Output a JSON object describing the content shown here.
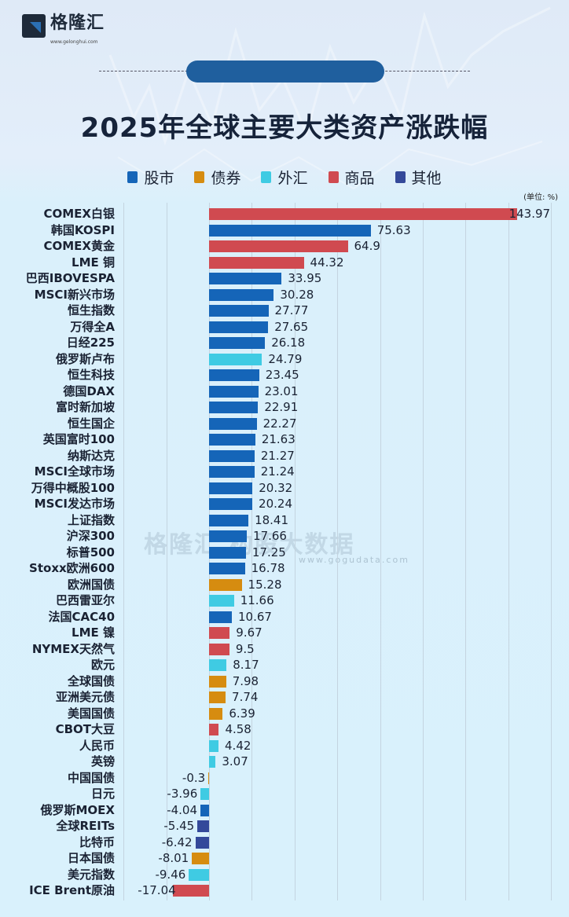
{
  "header": {
    "logo_text": "格隆汇",
    "logo_url": "www.gelonghui.com",
    "title": "2025年全球主要大类资产涨跌幅",
    "unit": "(单位: %)"
  },
  "legend": [
    {
      "label": "股市",
      "color": "#1565b8"
    },
    {
      "label": "债券",
      "color": "#d68c10"
    },
    {
      "label": "外汇",
      "color": "#3fcbe3"
    },
    {
      "label": "商品",
      "color": "#d04a50"
    },
    {
      "label": "其他",
      "color": "#34499a"
    }
  ],
  "watermark": {
    "text": "格隆汇 构股大数据",
    "url": "www.gogudata.com"
  },
  "chart_data": {
    "type": "bar",
    "orientation": "horizontal",
    "title": "2025年全球主要大类资产涨跌幅",
    "xlabel": "",
    "ylabel": "",
    "unit": "%",
    "xlim": [
      -40,
      160
    ],
    "grid": true,
    "legend_position": "top",
    "categories": [
      "COMEX白银",
      "韩国KOSPI",
      "COMEX黄金",
      "LME 铜",
      "巴西IBOVESPA",
      "MSCI新兴市场",
      "恒生指数",
      "万得全A",
      "日经225",
      "俄罗斯卢布",
      "恒生科技",
      "德国DAX",
      "富时新加坡",
      "恒生国企",
      "英国富时100",
      "纳斯达克",
      "MSCI全球市场",
      "万得中概股100",
      "MSCI发达市场",
      "上证指数",
      "沪深300",
      "标普500",
      "Stoxx欧洲600",
      "欧洲国债",
      "巴西雷亚尔",
      "法国CAC40",
      "LME 镍",
      "NYMEX天然气",
      "欧元",
      "全球国债",
      "亚洲美元债",
      "美国国债",
      "CBOT大豆",
      "人民币",
      "英镑",
      "中国国债",
      "日元",
      "俄罗斯MOEX",
      "全球REITs",
      "比特币",
      "日本国债",
      "美元指数",
      "ICE Brent原油"
    ],
    "values": [
      143.97,
      75.63,
      64.9,
      44.32,
      33.95,
      30.28,
      27.77,
      27.65,
      26.18,
      24.79,
      23.45,
      23.01,
      22.91,
      22.27,
      21.63,
      21.27,
      21.24,
      20.32,
      20.24,
      18.41,
      17.66,
      17.25,
      16.78,
      15.28,
      11.66,
      10.67,
      9.67,
      9.5,
      8.17,
      7.98,
      7.74,
      6.39,
      4.58,
      4.42,
      3.07,
      -0.3,
      -3.96,
      -4.04,
      -5.45,
      -6.42,
      -8.01,
      -9.46,
      -17.04
    ],
    "value_labels": [
      "143.97",
      "75.63",
      "64.9",
      "44.32",
      "33.95",
      "30.28",
      "27.77",
      "27.65",
      "26.18",
      "24.79",
      "23.45",
      "23.01",
      "22.91",
      "22.27",
      "21.63",
      "21.27",
      "21.24",
      "20.32",
      "20.24",
      "18.41",
      "17.66",
      "17.25",
      "16.78",
      "15.28",
      "11.66",
      "10.67",
      "9.67",
      "9.5",
      "8.17",
      "7.98",
      "7.74",
      "6.39",
      "4.58",
      "4.42",
      "3.07",
      "-0.3",
      "-3.96",
      "-4.04",
      "-5.45",
      "-6.42",
      "-8.01",
      "-9.46",
      "-17.04"
    ],
    "asset_class": [
      "商品",
      "股市",
      "商品",
      "商品",
      "股市",
      "股市",
      "股市",
      "股市",
      "股市",
      "外汇",
      "股市",
      "股市",
      "股市",
      "股市",
      "股市",
      "股市",
      "股市",
      "股市",
      "股市",
      "股市",
      "股市",
      "股市",
      "股市",
      "债券",
      "外汇",
      "股市",
      "商品",
      "商品",
      "外汇",
      "债券",
      "债券",
      "债券",
      "商品",
      "外汇",
      "外汇",
      "债券",
      "外汇",
      "股市",
      "其他",
      "其他",
      "债券",
      "外汇",
      "商品"
    ]
  }
}
